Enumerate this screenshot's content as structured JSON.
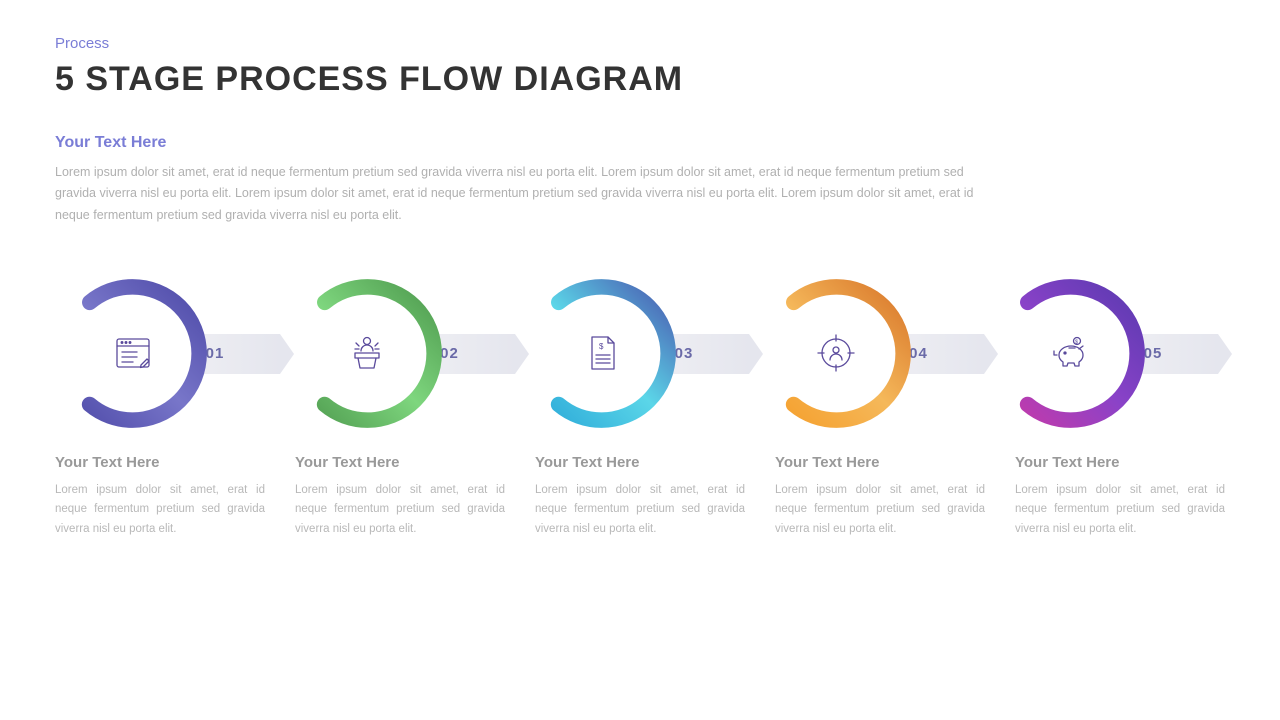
{
  "header": {
    "eyebrow": "Process",
    "title": "5 STAGE PROCESS FLOW DIAGRAM"
  },
  "intro": {
    "heading": "Your Text Here",
    "body": "Lorem ipsum dolor sit amet, erat id neque fermentum pretium sed gravida viverra nisl eu porta elit. Lorem ipsum dolor sit amet, erat id neque fermentum pretium sed gravida viverra nisl eu porta elit. Lorem ipsum dolor sit amet, erat id neque fermentum pretium sed gravida viverra nisl eu porta elit. Lorem ipsum dolor sit amet, erat id neque fermentum pretium sed gravida viverra nisl eu porta elit."
  },
  "diagram": {
    "type": "process-flow",
    "background_color": "#ffffff",
    "icon_stroke_color": "#5a4a9c",
    "arrow_tab_bg_start": "#f0f0f4",
    "arrow_tab_bg_end": "#e5e6ee",
    "number_color": "#6a6aa8",
    "ring_outer_radius": 72,
    "ring_stroke_width": 15,
    "ring_gap_start_deg": 130,
    "ring_gap_end_deg": 230,
    "stages": [
      {
        "number": "01",
        "icon": "browser-edit",
        "ring_gradient": [
          "#4e4aa8",
          "#7876c9",
          "#4e4aa8"
        ],
        "title": "Your Text Here",
        "body": "Lorem ipsum dolor sit amet, erat id neque fermentum pretium sed gravida viverra nisl eu porta elit."
      },
      {
        "number": "02",
        "icon": "speaker-podium",
        "ring_gradient": [
          "#4e9a4e",
          "#7ed67e",
          "#4e9a4e"
        ],
        "title": "Your Text Here",
        "body": "Lorem ipsum dolor sit amet, erat id neque fermentum pretium sed gravida viverra nisl eu porta elit."
      },
      {
        "number": "03",
        "icon": "invoice-document",
        "ring_gradient": [
          "#2aa8d8",
          "#5bd6e8",
          "#4a5ab0"
        ],
        "title": "Your Text Here",
        "body": "Lorem ipsum dolor sit amet, erat id neque fermentum pretium sed gravida viverra nisl eu porta elit."
      },
      {
        "number": "04",
        "icon": "target-user",
        "ring_gradient": [
          "#f59e2a",
          "#f5b85a",
          "#d8762a"
        ],
        "title": "Your Text Here",
        "body": "Lorem ipsum dolor sit amet, erat id neque fermentum pretium sed gravida viverra nisl eu porta elit."
      },
      {
        "number": "05",
        "icon": "piggy-bank",
        "ring_gradient": [
          "#c83aa8",
          "#8a42c8",
          "#5a3ab0"
        ],
        "title": "Your Text Here",
        "body": "Lorem ipsum dolor sit amet, erat id neque fermentum pretium sed gravida viverra nisl eu porta elit."
      }
    ]
  },
  "typography": {
    "eyebrow_fontsize": 15,
    "title_fontsize": 34,
    "intro_heading_fontsize": 16,
    "intro_body_fontsize": 12.5,
    "stage_number_fontsize": 15,
    "desc_title_fontsize": 15,
    "desc_body_fontsize": 11.5
  },
  "colors": {
    "eyebrow": "#7a7dd6",
    "title": "#333333",
    "intro_heading": "#7a7dd6",
    "intro_body": "#b0b0b0",
    "desc_title": "#999999",
    "desc_body": "#b8b8b8"
  }
}
